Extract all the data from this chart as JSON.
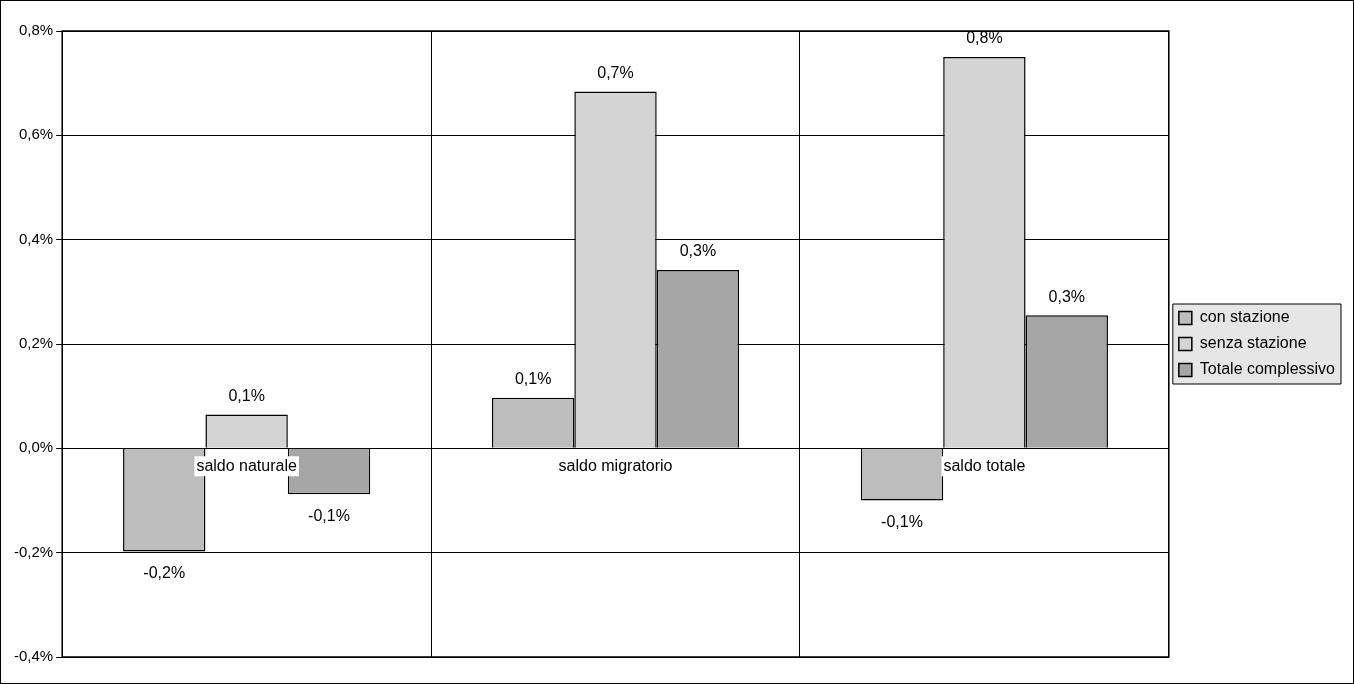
{
  "chart_data": {
    "type": "bar",
    "categories": [
      "saldo naturale",
      "saldo migratorio",
      "saldo totale"
    ],
    "series": [
      {
        "name": "con stazione",
        "color": "#bdbdbd",
        "values": [
          -0.198,
          0.097,
          -0.1
        ],
        "value_labels": [
          "-0,2%",
          "0,1%",
          "-0,1%"
        ]
      },
      {
        "name": "senza stazione",
        "color": "#d4d4d4",
        "values": [
          0.065,
          0.684,
          0.75
        ],
        "value_labels": [
          "0,1%",
          "0,7%",
          "0,8%"
        ]
      },
      {
        "name": "Totale complessivo",
        "color": "#a6a6a6",
        "values": [
          -0.088,
          0.342,
          0.255
        ],
        "value_labels": [
          "-0,1%",
          "0,3%",
          "0,3%"
        ]
      }
    ],
    "ylim": [
      -0.4,
      0.8
    ],
    "yticks": [
      {
        "value": -0.4,
        "label": "-0,4%"
      },
      {
        "value": -0.2,
        "label": "-0,2%"
      },
      {
        "value": 0,
        "label": "0,0%"
      },
      {
        "value": 0.2,
        "label": "0,2%"
      },
      {
        "value": 0.4,
        "label": "0,4%"
      },
      {
        "value": 0.6,
        "label": "0,6%"
      },
      {
        "value": 0.8,
        "label": "0,8%"
      }
    ],
    "grid": true,
    "legend": "right"
  }
}
